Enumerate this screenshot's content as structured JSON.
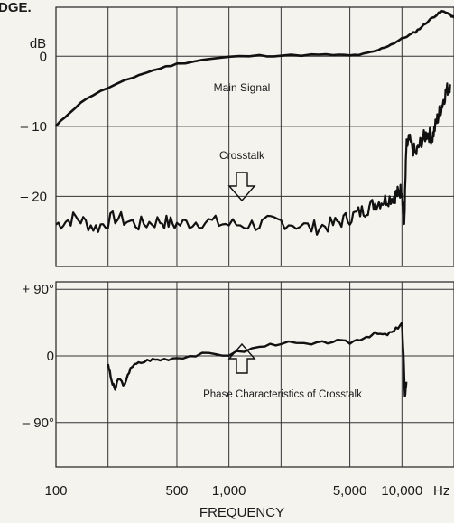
{
  "header_fragment": "DGE.",
  "chart_data": [
    {
      "type": "line",
      "x_scale": "log",
      "xlim": [
        100,
        20000
      ],
      "ylim": [
        -30,
        7
      ],
      "grid": true,
      "ylabel": "dB",
      "xlabel": "FREQUENCY",
      "x_unit": "Hz",
      "x_ticks": [
        {
          "value": 100,
          "label": "100"
        },
        {
          "value": 500,
          "label": "500"
        },
        {
          "value": 1000,
          "label": "1,000"
        },
        {
          "value": 5000,
          "label": "5,000"
        },
        {
          "value": 10000,
          "label": "10,000"
        }
      ],
      "y_ticks": [
        {
          "value": 0,
          "label": "0"
        },
        {
          "value": -10,
          "label": "– 10"
        },
        {
          "value": -20,
          "label": "– 20"
        }
      ],
      "series": [
        {
          "name": "Main Signal",
          "x": [
            100,
            120,
            150,
            200,
            250,
            300,
            400,
            500,
            700,
            1000,
            1500,
            2000,
            3000,
            4000,
            5000,
            6000,
            7000,
            8000,
            9000,
            10000,
            11000,
            12000,
            13000,
            14000,
            15000,
            16000,
            17000,
            18000,
            19000,
            20000
          ],
          "y": [
            -10,
            -8,
            -6,
            -4.5,
            -3.5,
            -2.7,
            -1.7,
            -1.1,
            -0.5,
            -0.1,
            0.1,
            0.1,
            0.2,
            0.2,
            0.1,
            0.3,
            0.7,
            1.3,
            1.9,
            2.5,
            3,
            3.5,
            4.2,
            4.9,
            5.5,
            6,
            6.4,
            6.3,
            5.9,
            5.5
          ]
        },
        {
          "name": "Crosstalk",
          "x": [
            100,
            130,
            170,
            220,
            300,
            400,
            500,
            700,
            1000,
            1500,
            2000,
            3000,
            4000,
            5000,
            6000,
            7000,
            8000,
            9000,
            9500,
            10000,
            10300,
            10600,
            11000,
            12000,
            13000,
            14000,
            15000,
            16000,
            17000,
            18000,
            19000
          ],
          "y": [
            -24,
            -23,
            -24.5,
            -23,
            -24,
            -23.5,
            -24,
            -23.5,
            -24,
            -24,
            -23.5,
            -24.5,
            -24,
            -23,
            -22,
            -21,
            -20.5,
            -20,
            -19.5,
            -19,
            -24,
            -13,
            -12,
            -14,
            -12,
            -11,
            -11.5,
            -9,
            -7,
            -5,
            -4
          ]
        }
      ],
      "annotations": {
        "main_signal_label": "Main Signal",
        "crosstalk_label": "Crosstalk"
      }
    },
    {
      "type": "line",
      "x_scale": "log",
      "xlim": [
        100,
        20000
      ],
      "ylim": [
        -150,
        100
      ],
      "grid": true,
      "y_ticks": [
        {
          "value": 90,
          "label": "+ 90°"
        },
        {
          "value": 0,
          "label": "0"
        },
        {
          "value": -90,
          "label": "– 90°"
        }
      ],
      "series": [
        {
          "name": "Phase Characteristics of Crosstalk",
          "x": [
            200,
            210,
            220,
            230,
            250,
            270,
            300,
            350,
            400,
            500,
            700,
            1000,
            1500,
            2000,
            3000,
            4000,
            5000,
            6000,
            7000,
            8000,
            9000,
            10000,
            10200,
            10400,
            10600
          ],
          "y": [
            -10,
            -35,
            -45,
            -30,
            -40,
            -15,
            -10,
            -5,
            -5,
            -2,
            2,
            2,
            12,
            18,
            15,
            20,
            18,
            25,
            30,
            28,
            33,
            45,
            0,
            -55,
            -35
          ]
        }
      ],
      "annotations": {
        "phase_label": "Phase Characteristics of Crosstalk"
      }
    }
  ]
}
